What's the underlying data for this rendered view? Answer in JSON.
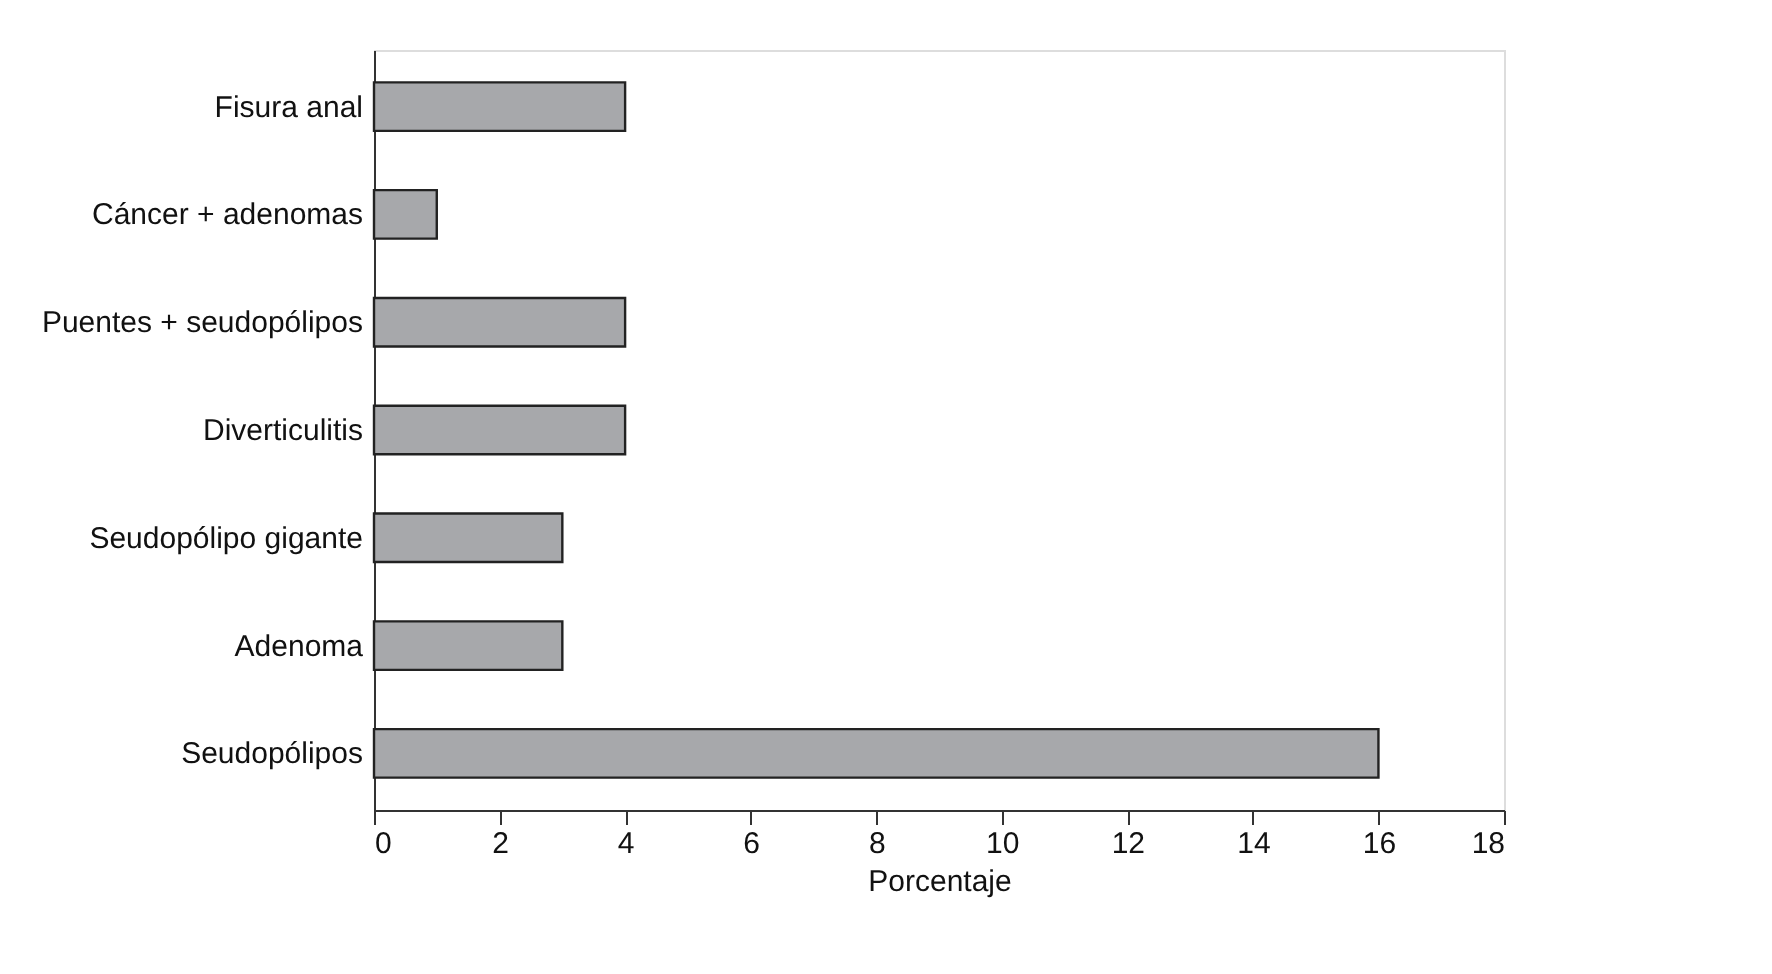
{
  "chart_data": {
    "type": "bar",
    "orientation": "horizontal",
    "xlabel": "Porcentaje",
    "categories": [
      "Fisura anal",
      "Cáncer + adenomas",
      "Puentes + seudopólipos",
      "Diverticulitis",
      "Seudopólipo gigante",
      "Adenoma",
      "Seudopólipos"
    ],
    "values": [
      4,
      1,
      4,
      4,
      3,
      3,
      16
    ],
    "color": "#a7a8ab",
    "xlim": [
      0,
      18
    ],
    "xticks": [
      0,
      2,
      4,
      6,
      8,
      10,
      12,
      14,
      16,
      18
    ],
    "grid": false,
    "legend": false
  }
}
